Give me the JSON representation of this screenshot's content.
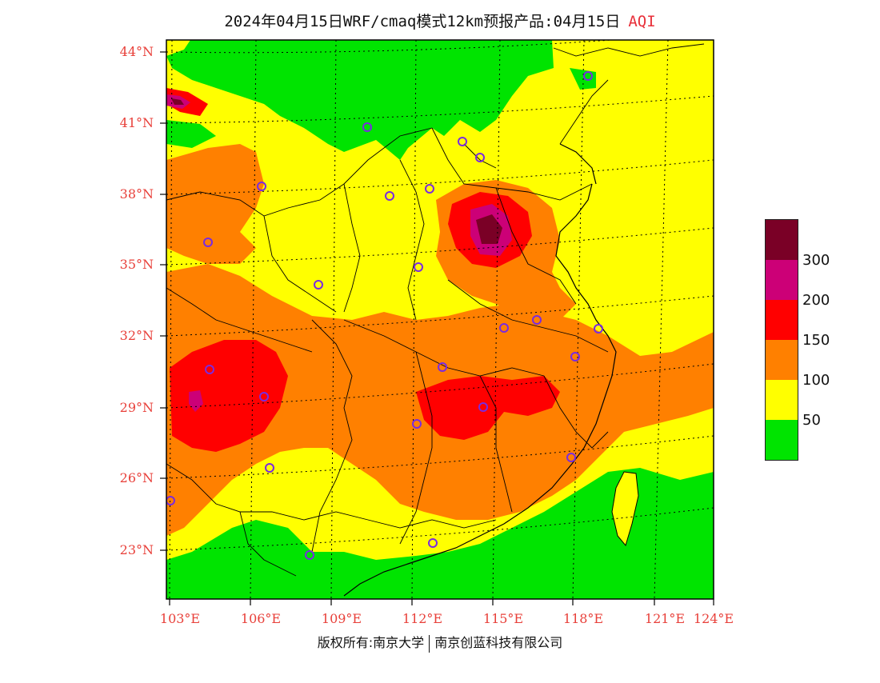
{
  "header": {
    "title_main": "2024年04月15日WRF/cmaq模式12km预报产品:04月15日",
    "title_var": "AQI"
  },
  "axes": {
    "lat_labels": [
      "44°N",
      "41°N",
      "38°N",
      "35°N",
      "32°N",
      "29°N",
      "26°N",
      "23°N"
    ],
    "lon_labels": [
      "103°E",
      "106°E",
      "109°E",
      "112°E",
      "115°E",
      "118°E",
      "121°E",
      "124°E"
    ]
  },
  "legend": {
    "colors": [
      "#7a0026",
      "#cc0077",
      "#ff0000",
      "#ff8000",
      "#ffff00",
      "#00e400"
    ],
    "values": [
      "300",
      "200",
      "150",
      "100",
      "50"
    ]
  },
  "footer": {
    "left": "版权所有:南京大学",
    "right": "南京创蓝科技有限公司"
  }
}
